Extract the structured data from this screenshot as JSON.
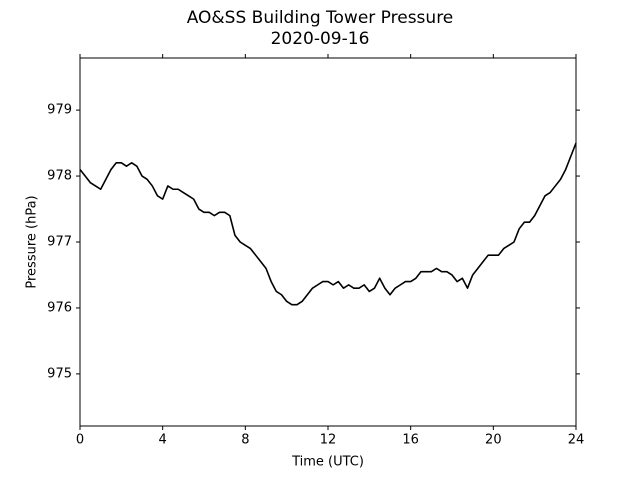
{
  "chart_data": {
    "type": "line",
    "title": "AO&SS Building Tower Pressure",
    "subtitle": "2020-09-16",
    "x_label": "Time (UTC)",
    "y_label": "Pressure (hPa)",
    "xlim": [
      0,
      24
    ],
    "xticks": [
      0,
      4,
      8,
      12,
      16,
      20,
      24
    ],
    "ylim": [
      974.21,
      979.79
    ],
    "yticks": [
      975,
      976,
      977,
      978,
      979
    ],
    "grid": false,
    "x": [
      0,
      0.25,
      0.5,
      0.75,
      1,
      1.25,
      1.5,
      1.75,
      2,
      2.25,
      2.5,
      2.75,
      3,
      3.25,
      3.5,
      3.75,
      4,
      4.25,
      4.5,
      4.75,
      5,
      5.25,
      5.5,
      5.75,
      6,
      6.25,
      6.5,
      6.75,
      7,
      7.25,
      7.5,
      7.75,
      8,
      8.25,
      8.5,
      8.75,
      9,
      9.25,
      9.5,
      9.75,
      10,
      10.25,
      10.5,
      10.75,
      11,
      11.25,
      11.5,
      11.75,
      12,
      12.25,
      12.5,
      12.75,
      13,
      13.25,
      13.5,
      13.75,
      14,
      14.25,
      14.5,
      14.75,
      15,
      15.25,
      15.5,
      15.75,
      16,
      16.25,
      16.5,
      16.75,
      17,
      17.25,
      17.5,
      17.75,
      18,
      18.25,
      18.5,
      18.75,
      19,
      19.25,
      19.5,
      19.75,
      20,
      20.25,
      20.5,
      20.75,
      21,
      21.25,
      21.5,
      21.75,
      22,
      22.25,
      22.5,
      22.75,
      23,
      23.25,
      23.5,
      23.75,
      24
    ],
    "series": [
      {
        "color": "#000000",
        "values": [
          978.1,
          978.0,
          977.9,
          977.85,
          977.8,
          977.95,
          978.1,
          978.2,
          978.2,
          978.15,
          978.2,
          978.15,
          978.0,
          977.95,
          977.85,
          977.7,
          977.65,
          977.85,
          977.8,
          977.8,
          977.75,
          977.7,
          977.65,
          977.5,
          977.45,
          977.45,
          977.4,
          977.45,
          977.45,
          977.4,
          977.1,
          977.0,
          976.95,
          976.9,
          976.8,
          976.7,
          976.6,
          976.4,
          976.25,
          976.2,
          976.1,
          976.05,
          976.05,
          976.1,
          976.2,
          976.3,
          976.35,
          976.4,
          976.4,
          976.35,
          976.4,
          976.3,
          976.35,
          976.3,
          976.3,
          976.35,
          976.25,
          976.3,
          976.45,
          976.3,
          976.2,
          976.3,
          976.35,
          976.4,
          976.4,
          976.45,
          976.55,
          976.55,
          976.55,
          976.6,
          976.55,
          976.55,
          976.5,
          976.4,
          976.45,
          976.3,
          976.5,
          976.6,
          976.7,
          976.8,
          976.8,
          976.8,
          976.9,
          976.95,
          977.0,
          977.2,
          977.3,
          977.3,
          977.4,
          977.55,
          977.7,
          977.75,
          977.85,
          977.95,
          978.1,
          978.3,
          978.5
        ]
      }
    ]
  }
}
